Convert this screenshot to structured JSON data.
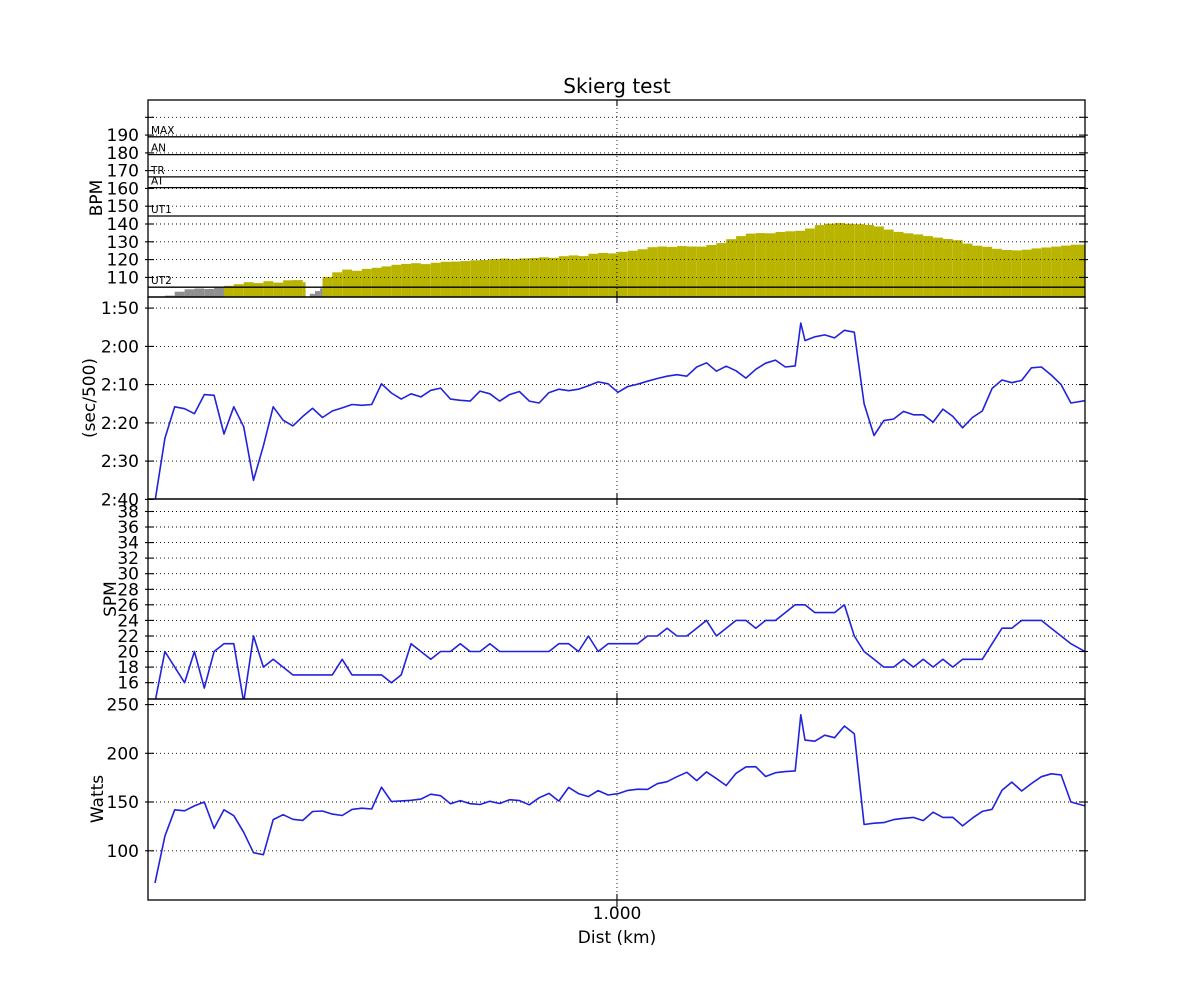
{
  "title": "Skierg test",
  "x_axis": {
    "label": "Dist (km)",
    "min": 0,
    "max": 1.998,
    "ticks": [
      {
        "value": 1.0,
        "label": "1.000"
      }
    ]
  },
  "colors": {
    "series_line": "#2222dd",
    "hr_in_zone": "#b9b400",
    "hr_below_zone": "#8f8f8f",
    "grid": "#000000",
    "frame": "#000000",
    "text": "#000000",
    "background": "#ffffff"
  },
  "chart_data": [
    {
      "type": "area",
      "ylabel": "BPM",
      "y_axis": {
        "top_value": 209.7,
        "bottom_value": 99
      },
      "yticks": [
        {
          "value": 190,
          "label": "190"
        },
        {
          "value": 180,
          "label": "180"
        },
        {
          "value": 170,
          "label": "170"
        },
        {
          "value": 160,
          "label": "160"
        },
        {
          "value": 150,
          "label": "150"
        },
        {
          "value": 140,
          "label": "140"
        },
        {
          "value": 130,
          "label": "130"
        },
        {
          "value": 120,
          "label": "120"
        },
        {
          "value": 110,
          "label": "110"
        }
      ],
      "grid_values": [
        110,
        120,
        130,
        140,
        150,
        160,
        170,
        180,
        190,
        200
      ],
      "zones": [
        {
          "label": "MAX",
          "value": 189
        },
        {
          "label": "AN",
          "value": 179
        },
        {
          "label": "TR",
          "value": 166.5
        },
        {
          "label": "AT",
          "value": 160.5
        },
        {
          "label": "UT1",
          "value": 144.5
        },
        {
          "label": "UT2",
          "value": 104.5
        }
      ],
      "zone_threshold": 104.5,
      "x": [
        0.036,
        0.057,
        0.078,
        0.099,
        0.12,
        0.141,
        0.162,
        0.183,
        0.204,
        0.225,
        0.246,
        0.267,
        0.288,
        0.309,
        0.33,
        0.336,
        0.345,
        0.356,
        0.367,
        0.372,
        0.393,
        0.414,
        0.435,
        0.456,
        0.477,
        0.498,
        0.519,
        0.54,
        0.561,
        0.582,
        0.603,
        0.624,
        0.645,
        0.666,
        0.687,
        0.708,
        0.729,
        0.75,
        0.771,
        0.792,
        0.813,
        0.834,
        0.855,
        0.876,
        0.897,
        0.918,
        0.939,
        0.96,
        0.981,
        1.002,
        1.023,
        1.044,
        1.065,
        1.086,
        1.107,
        1.128,
        1.149,
        1.17,
        1.191,
        1.212,
        1.233,
        1.254,
        1.275,
        1.296,
        1.317,
        1.338,
        1.359,
        1.38,
        1.401,
        1.422,
        1.443,
        1.464,
        1.485,
        1.506,
        1.527,
        1.548,
        1.569,
        1.59,
        1.611,
        1.632,
        1.653,
        1.674,
        1.695,
        1.716,
        1.737,
        1.758,
        1.779,
        1.8,
        1.821,
        1.842,
        1.863,
        1.884,
        1.905,
        1.926,
        1.947,
        1.968,
        1.998
      ],
      "y": [
        99.8,
        102,
        103.3,
        103.8,
        103.5,
        104.2,
        105.3,
        106.2,
        107.3,
        106.8,
        107.9,
        107.1,
        108.4,
        108.5,
        107.3,
        99.3,
        100.8,
        102.3,
        103.9,
        110.3,
        112.9,
        114.4,
        113.7,
        114.8,
        115.4,
        116.2,
        117.1,
        117.6,
        118,
        117.5,
        118.2,
        118.8,
        118.9,
        119.2,
        119.6,
        119.8,
        120.3,
        120.6,
        120.3,
        120.7,
        120.9,
        121.3,
        121,
        121.9,
        122.4,
        122,
        123.3,
        123.8,
        123.5,
        124.4,
        125,
        125.8,
        127,
        127.4,
        127.1,
        127.6,
        127.4,
        127.3,
        128.2,
        129.3,
        131.5,
        133.2,
        134.6,
        134.9,
        134.8,
        135.5,
        135.9,
        136.2,
        137.5,
        139.4,
        140.2,
        140.5,
        140.2,
        139.9,
        139.5,
        138.6,
        136.9,
        135.6,
        134.8,
        134.2,
        133.2,
        132.4,
        131.6,
        130.9,
        129,
        127.8,
        127.2,
        126.1,
        125.4,
        125.2,
        125.6,
        126.3,
        126.8,
        127.3,
        127.9,
        128.4,
        129.2
      ]
    },
    {
      "type": "line",
      "ylabel": "(sec/500)",
      "y_axis": {
        "top_value": 107.1,
        "bottom_value": 159.9
      },
      "yticks": [
        {
          "value": 110,
          "label": "1:50"
        },
        {
          "value": 120,
          "label": "2:00"
        },
        {
          "value": 130,
          "label": "2:10"
        },
        {
          "value": 140,
          "label": "2:20"
        },
        {
          "value": 150,
          "label": "2:30"
        },
        {
          "value": 160,
          "label": "2:40"
        }
      ],
      "grid_values": [
        110,
        120,
        130,
        140,
        150,
        160
      ],
      "x": [
        0.015,
        0.036,
        0.057,
        0.078,
        0.099,
        0.12,
        0.141,
        0.162,
        0.183,
        0.204,
        0.225,
        0.246,
        0.267,
        0.288,
        0.309,
        0.33,
        0.351,
        0.372,
        0.393,
        0.414,
        0.435,
        0.456,
        0.477,
        0.498,
        0.519,
        0.54,
        0.561,
        0.582,
        0.603,
        0.624,
        0.645,
        0.666,
        0.687,
        0.708,
        0.729,
        0.75,
        0.771,
        0.792,
        0.813,
        0.834,
        0.855,
        0.876,
        0.897,
        0.918,
        0.939,
        0.96,
        0.981,
        1.002,
        1.023,
        1.044,
        1.065,
        1.086,
        1.107,
        1.128,
        1.149,
        1.17,
        1.191,
        1.212,
        1.233,
        1.254,
        1.275,
        1.296,
        1.317,
        1.338,
        1.359,
        1.38,
        1.392,
        1.401,
        1.422,
        1.443,
        1.464,
        1.485,
        1.506,
        1.527,
        1.548,
        1.569,
        1.59,
        1.611,
        1.632,
        1.653,
        1.674,
        1.695,
        1.716,
        1.737,
        1.758,
        1.779,
        1.8,
        1.821,
        1.842,
        1.863,
        1.884,
        1.905,
        1.926,
        1.947,
        1.968,
        1.998
      ],
      "y": [
        160.5,
        144,
        135.8,
        136.3,
        137.6,
        132.6,
        132.8,
        142.9,
        135.8,
        141,
        155,
        146,
        135.8,
        139.3,
        140.8,
        138.3,
        136.2,
        138.6,
        136.9,
        136.1,
        135.2,
        135.4,
        135.2,
        129.8,
        132.2,
        133.8,
        132.4,
        133.2,
        131.5,
        130.9,
        133.8,
        134.1,
        134.3,
        131.7,
        132.4,
        134.3,
        132.6,
        131.8,
        134.3,
        134.8,
        132.1,
        131.2,
        131.6,
        131.2,
        130.3,
        129.3,
        129.8,
        132,
        130.5,
        129.9,
        129.1,
        128.4,
        127.8,
        127.4,
        127.8,
        125.4,
        124.3,
        126.5,
        125.2,
        126.4,
        128.3,
        126,
        124.4,
        123.6,
        125.4,
        125.1,
        113.9,
        118.5,
        117.5,
        117,
        117.8,
        115.8,
        116.3,
        135,
        143.3,
        139.4,
        139,
        137,
        137.9,
        137.9,
        139.8,
        136.4,
        138.3,
        141.3,
        138.6,
        136.9,
        131,
        128.8,
        129.5,
        128.9,
        125.6,
        125.4,
        127.5,
        130,
        134.8,
        134.2
      ]
    },
    {
      "type": "line",
      "ylabel": "SPM",
      "y_axis": {
        "top_value": 39.6,
        "bottom_value": 13.9
      },
      "yticks": [
        {
          "value": 38,
          "label": "38"
        },
        {
          "value": 36,
          "label": "36"
        },
        {
          "value": 34,
          "label": "34"
        },
        {
          "value": 32,
          "label": "32"
        },
        {
          "value": 30,
          "label": "30"
        },
        {
          "value": 28,
          "label": "28"
        },
        {
          "value": 26,
          "label": "26"
        },
        {
          "value": 24,
          "label": "24"
        },
        {
          "value": 22,
          "label": "22"
        },
        {
          "value": 20,
          "label": "20"
        },
        {
          "value": 18,
          "label": "18"
        },
        {
          "value": 16,
          "label": "16"
        }
      ],
      "grid_values": [
        16,
        18,
        20,
        22,
        24,
        26,
        28,
        30,
        32,
        34,
        36,
        38
      ],
      "x": [
        0.015,
        0.036,
        0.057,
        0.078,
        0.099,
        0.12,
        0.141,
        0.162,
        0.183,
        0.204,
        0.225,
        0.246,
        0.267,
        0.288,
        0.309,
        0.33,
        0.351,
        0.372,
        0.393,
        0.414,
        0.435,
        0.456,
        0.477,
        0.498,
        0.519,
        0.54,
        0.561,
        0.582,
        0.603,
        0.624,
        0.645,
        0.666,
        0.687,
        0.708,
        0.729,
        0.75,
        0.771,
        0.792,
        0.813,
        0.834,
        0.855,
        0.876,
        0.897,
        0.918,
        0.939,
        0.96,
        0.981,
        1.002,
        1.023,
        1.044,
        1.065,
        1.086,
        1.107,
        1.128,
        1.149,
        1.17,
        1.191,
        1.212,
        1.233,
        1.254,
        1.275,
        1.296,
        1.317,
        1.338,
        1.359,
        1.38,
        1.392,
        1.401,
        1.422,
        1.443,
        1.464,
        1.485,
        1.506,
        1.527,
        1.548,
        1.569,
        1.59,
        1.611,
        1.632,
        1.653,
        1.674,
        1.695,
        1.716,
        1.737,
        1.758,
        1.779,
        1.8,
        1.821,
        1.842,
        1.863,
        1.884,
        1.905,
        1.926,
        1.947,
        1.968,
        1.998
      ],
      "y": [
        13.5,
        20,
        18,
        16,
        20,
        15.3,
        20,
        21,
        21,
        13.5,
        22,
        18,
        19,
        18,
        17,
        17,
        17,
        17,
        17,
        19,
        17,
        17,
        17,
        17,
        16,
        17,
        21,
        20,
        19,
        20,
        20,
        21,
        20,
        20,
        21,
        20,
        20,
        20,
        20,
        20,
        20,
        21,
        21,
        20,
        22,
        20,
        21,
        21,
        21,
        21,
        22,
        22,
        23,
        22,
        22,
        23,
        24,
        22,
        23,
        24,
        24,
        23,
        24,
        24,
        25,
        26,
        26,
        26,
        25,
        25,
        25,
        26,
        22,
        20,
        19,
        18,
        18,
        19,
        18,
        19,
        18,
        19,
        18,
        19,
        19,
        19,
        21,
        23,
        23,
        24,
        24,
        24,
        23,
        22,
        21,
        20
      ]
    },
    {
      "type": "line",
      "ylabel": "Watts",
      "y_axis": {
        "top_value": 255.7,
        "bottom_value": 49.5
      },
      "yticks": [
        {
          "value": 250,
          "label": "250"
        },
        {
          "value": 200,
          "label": "200"
        },
        {
          "value": 150,
          "label": "150"
        },
        {
          "value": 100,
          "label": "100"
        }
      ],
      "grid_values": [
        100,
        150,
        200,
        250
      ],
      "x": [
        0.015,
        0.036,
        0.057,
        0.078,
        0.099,
        0.12,
        0.141,
        0.162,
        0.183,
        0.204,
        0.225,
        0.246,
        0.267,
        0.288,
        0.309,
        0.33,
        0.351,
        0.372,
        0.393,
        0.414,
        0.435,
        0.456,
        0.477,
        0.498,
        0.519,
        0.54,
        0.561,
        0.582,
        0.603,
        0.624,
        0.645,
        0.666,
        0.687,
        0.708,
        0.729,
        0.75,
        0.771,
        0.792,
        0.813,
        0.834,
        0.855,
        0.876,
        0.897,
        0.918,
        0.939,
        0.96,
        0.981,
        1.002,
        1.023,
        1.044,
        1.065,
        1.086,
        1.107,
        1.128,
        1.149,
        1.17,
        1.191,
        1.212,
        1.233,
        1.254,
        1.275,
        1.296,
        1.317,
        1.338,
        1.359,
        1.38,
        1.392,
        1.401,
        1.422,
        1.443,
        1.464,
        1.485,
        1.506,
        1.527,
        1.548,
        1.569,
        1.59,
        1.611,
        1.632,
        1.653,
        1.674,
        1.695,
        1.716,
        1.737,
        1.758,
        1.779,
        1.8,
        1.821,
        1.842,
        1.863,
        1.884,
        1.905,
        1.926,
        1.947,
        1.968,
        1.998
      ],
      "y": [
        67,
        115,
        142,
        141,
        146,
        150,
        123,
        142,
        136,
        119,
        98,
        96,
        132,
        137,
        132.3,
        131.2,
        140.3,
        140.8,
        137.6,
        136.2,
        142.4,
        143.7,
        142.9,
        165.2,
        150.5,
        151.2,
        151.8,
        153,
        158,
        156.5,
        148.2,
        151.5,
        148.3,
        147.5,
        150.8,
        148.5,
        152.4,
        151.5,
        147.2,
        154.3,
        158.9,
        151,
        165,
        158.7,
        155.6,
        161.7,
        157.2,
        158.5,
        161.9,
        163.2,
        163,
        168.8,
        170.9,
        176,
        180.5,
        172,
        180.9,
        174,
        167,
        179.5,
        186,
        186.2,
        176.2,
        180.1,
        181.2,
        181.9,
        239.5,
        213.5,
        212.4,
        218.6,
        216,
        228,
        220,
        127,
        128.3,
        128.9,
        132,
        133.3,
        134.2,
        131,
        139.6,
        134.2,
        134.3,
        125.5,
        133.5,
        140.4,
        142.5,
        162,
        170.5,
        161.3,
        169,
        176,
        179,
        177.8,
        150,
        146
      ]
    }
  ]
}
